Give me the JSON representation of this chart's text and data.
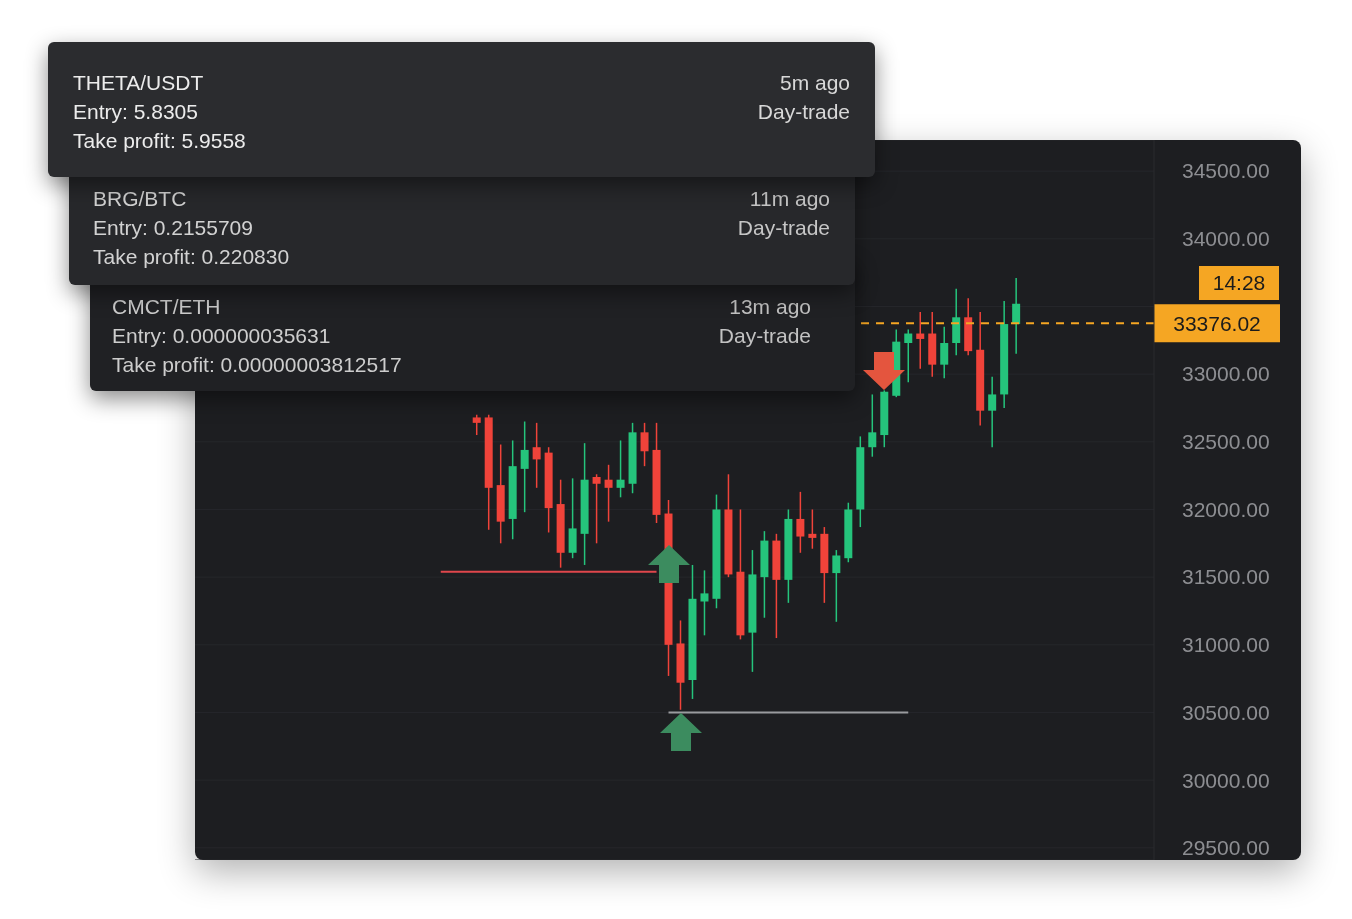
{
  "chart_data": {
    "type": "candlestick",
    "categories": [
      null,
      null,
      null,
      null,
      null,
      null,
      null,
      null,
      null,
      null,
      null,
      null,
      null,
      null,
      null,
      null,
      null,
      null,
      null,
      null,
      null,
      null,
      null,
      null,
      null,
      null,
      null,
      null,
      null,
      null,
      null,
      null,
      null,
      null,
      null,
      null,
      null,
      null,
      null,
      null,
      null,
      null,
      null,
      null,
      null,
      null,
      null,
      null,
      null,
      null,
      null,
      null,
      null,
      null,
      null,
      null,
      null,
      null,
      null,
      null,
      null,
      null,
      null,
      null,
      null,
      null,
      null,
      null,
      null,
      null,
      null,
      null,
      null,
      null,
      null,
      null,
      null,
      null,
      null,
      null
    ],
    "ohlc": [
      null,
      null,
      null,
      null,
      null,
      null,
      null,
      null,
      null,
      null,
      null,
      null,
      null,
      null,
      null,
      null,
      null,
      null,
      null,
      null,
      null,
      null,
      null,
      [
        32680,
        32700,
        32550,
        32640
      ],
      [
        32680,
        32700,
        31850,
        32160
      ],
      [
        32180,
        32480,
        31750,
        31910
      ],
      [
        31930,
        32510,
        31780,
        32320
      ],
      [
        32300,
        32650,
        31980,
        32440
      ],
      [
        32460,
        32640,
        32160,
        32370
      ],
      [
        32420,
        32460,
        31830,
        32010
      ],
      [
        32040,
        32220,
        31570,
        31680
      ],
      [
        31680,
        32230,
        31640,
        31860
      ],
      [
        31820,
        32490,
        31590,
        32220
      ],
      [
        32240,
        32260,
        31750,
        32190
      ],
      [
        32220,
        32330,
        31910,
        32160
      ],
      [
        32160,
        32510,
        32090,
        32220
      ],
      [
        32190,
        32640,
        32120,
        32570
      ],
      [
        32570,
        32640,
        32320,
        32430
      ],
      [
        32440,
        32640,
        31900,
        31960
      ],
      [
        31970,
        32070,
        30770,
        31000
      ],
      [
        31010,
        31180,
        30520,
        30720
      ],
      [
        30740,
        31590,
        30600,
        31340
      ],
      [
        31320,
        31550,
        31070,
        31380
      ],
      [
        31340,
        32110,
        31270,
        32000
      ],
      [
        32000,
        32260,
        31500,
        31520
      ],
      [
        31540,
        32000,
        31040,
        31070
      ],
      [
        31090,
        31700,
        30800,
        31520
      ],
      [
        31500,
        31840,
        31200,
        31770
      ],
      [
        31770,
        31820,
        31050,
        31480
      ],
      [
        31480,
        32000,
        31310,
        31930
      ],
      [
        31930,
        32130,
        31680,
        31800
      ],
      [
        31820,
        32000,
        31710,
        31790
      ],
      [
        31820,
        31870,
        31310,
        31530
      ],
      [
        31530,
        31700,
        31170,
        31660
      ],
      [
        31640,
        32050,
        31610,
        32000
      ],
      [
        32000,
        32540,
        31870,
        32460
      ],
      [
        32460,
        32850,
        32390,
        32570
      ],
      [
        32550,
        32880,
        32460,
        32870
      ],
      [
        32840,
        33330,
        32830,
        33240
      ],
      [
        33230,
        33330,
        32940,
        33300
      ],
      [
        33300,
        33460,
        33040,
        33260
      ],
      [
        33300,
        33460,
        32980,
        33070
      ],
      [
        33070,
        33350,
        32970,
        33230
      ],
      [
        33230,
        33630,
        33140,
        33420
      ],
      [
        33420,
        33560,
        33140,
        33170
      ],
      [
        33180,
        33460,
        32620,
        32730
      ],
      [
        32730,
        32980,
        32460,
        32850
      ],
      [
        32850,
        33540,
        32750,
        33370
      ],
      [
        33370,
        33710,
        33150,
        33520
      ],
      null,
      null,
      null,
      null,
      null,
      null,
      null,
      null,
      null,
      null,
      null
    ],
    "colors": [
      null,
      null,
      null,
      null,
      null,
      null,
      null,
      null,
      null,
      null,
      null,
      null,
      null,
      null,
      null,
      null,
      null,
      null,
      null,
      null,
      null,
      null,
      null,
      "#f0433a",
      "#f0433a",
      "#f0433a",
      "#25c47c",
      "#25c47c",
      "#f0433a",
      "#f0433a",
      "#f0433a",
      "#25c47c",
      "#25c47c",
      "#f0433a",
      "#f0433a",
      "#25c47c",
      "#25c47c",
      "#f0433a",
      "#f0433a",
      "#f0433a",
      "#f0433a",
      "#25c47c",
      "#25c47c",
      "#25c47c",
      "#f0433a",
      "#f0433a",
      "#25c47c",
      "#25c47c",
      "#f0433a",
      "#25c47c",
      "#f0433a",
      "#f0433a",
      "#f0433a",
      "#25c47c",
      "#25c47c",
      "#25c47c",
      "#25c47c",
      "#25c47c",
      "#25c47c",
      "#25c47c",
      "#f0433a",
      "#f0433a",
      "#25c47c",
      "#25c47c",
      "#f0433a",
      "#f0433a",
      "#25c47c",
      "#25c47c",
      "#25c47c",
      null,
      null,
      null,
      null,
      null,
      null,
      null,
      null,
      null,
      null,
      null
    ],
    "series": [
      {
        "type": "line",
        "color": "#e0474c",
        "values": [
          null,
          null,
          null,
          null,
          null,
          null,
          null,
          null,
          null,
          null,
          null,
          null,
          null,
          null,
          null,
          null,
          null,
          null,
          null,
          null,
          31540,
          31540,
          31540,
          31540,
          31540,
          31540,
          31540,
          31540,
          31540,
          31540,
          31540,
          31540,
          31540,
          31540,
          31540,
          31540,
          31540,
          31540,
          31540,
          null,
          null,
          null,
          null,
          null,
          null,
          null,
          null,
          null,
          null,
          null,
          null,
          null,
          null,
          null,
          null,
          null,
          null,
          null,
          null,
          null,
          null,
          null,
          null,
          null,
          null,
          null,
          null,
          null,
          null,
          null,
          null,
          null,
          null,
          null,
          null,
          null,
          null,
          null,
          null,
          null
        ]
      },
      {
        "type": "line",
        "color": "#9a9b9f",
        "values": [
          null,
          null,
          null,
          null,
          null,
          null,
          null,
          null,
          null,
          null,
          null,
          null,
          null,
          null,
          null,
          null,
          null,
          null,
          null,
          null,
          null,
          null,
          null,
          null,
          null,
          null,
          null,
          null,
          null,
          null,
          null,
          null,
          null,
          null,
          null,
          null,
          null,
          null,
          null,
          30500,
          30500,
          30500,
          30500,
          30500,
          30500,
          30500,
          30500,
          30500,
          30500,
          30500,
          30500,
          30500,
          30500,
          30500,
          30500,
          30500,
          30500,
          30500,
          30500,
          30500,
          null,
          null,
          null,
          null,
          null,
          null,
          null,
          null,
          null,
          null,
          null,
          null,
          null,
          null,
          null,
          null,
          null,
          null,
          null,
          null
        ]
      }
    ],
    "ylim": [
      29410,
      34730
    ],
    "yticks": [
      {
        "value": 29500,
        "label": "29500.00"
      },
      {
        "value": 30000,
        "label": "30000.00"
      },
      {
        "value": 30500,
        "label": "30500.00"
      },
      {
        "value": 31000,
        "label": "31000.00"
      },
      {
        "value": 31500,
        "label": "31500.00"
      },
      {
        "value": 32000,
        "label": "32000.00"
      },
      {
        "value": 32500,
        "label": "32500.00"
      },
      {
        "value": 33000,
        "label": "33000.00"
      },
      {
        "value": 33500,
        "label": null
      },
      {
        "value": 34000,
        "label": "34000.00"
      },
      {
        "value": 34500,
        "label": "34500.00"
      }
    ],
    "grid": "y",
    "tick_labels": "y",
    "ref_lines": [
      {
        "axis": "y",
        "value": 33376.02,
        "label": "33376.02",
        "color": "#f5a623",
        "line_style": "dashed"
      }
    ],
    "annotations": [
      "THETA/USDT",
      "5m ago",
      "Entry: 5.8305",
      "Day-trade",
      "Take profit: 5.9558",
      "BRG/BTC",
      "11m ago",
      "Entry: 0.2155709",
      "Day-trade",
      "Take profit: 0.220830",
      "CMCT/ETH",
      "13m ago",
      "Entry: 0.000000035631",
      "Day-trade",
      "Take profit: 0.00000003812517",
      "14:28"
    ]
  }
}
